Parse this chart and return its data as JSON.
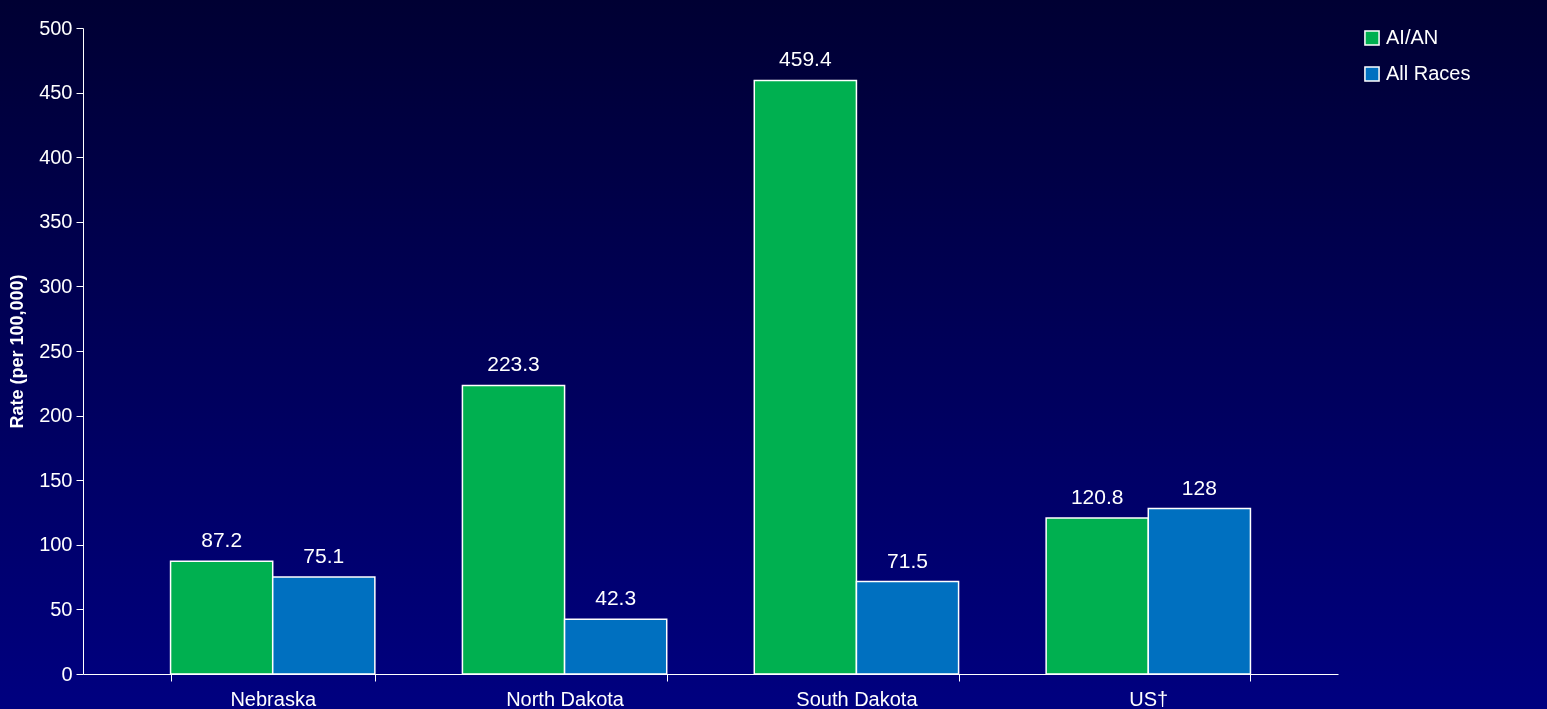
{
  "chart_data": {
    "type": "bar",
    "ylabel": "Rate (per 100,000)",
    "categories": [
      "Nebraska",
      "North Dakota",
      "South Dakota",
      "US†"
    ],
    "series": [
      {
        "name": "AI/AN",
        "color": "#00b050",
        "values": [
          87.2,
          223.3,
          459.4,
          120.8
        ]
      },
      {
        "name": "All Races",
        "color": "#0070c0",
        "values": [
          75.1,
          42.3,
          71.5,
          128
        ]
      }
    ],
    "ylim": [
      0,
      500
    ],
    "yticks": [
      0,
      50,
      100,
      150,
      200,
      250,
      300,
      350,
      400,
      450,
      500
    ],
    "data_labels": true,
    "grid": false,
    "legend": "right"
  }
}
